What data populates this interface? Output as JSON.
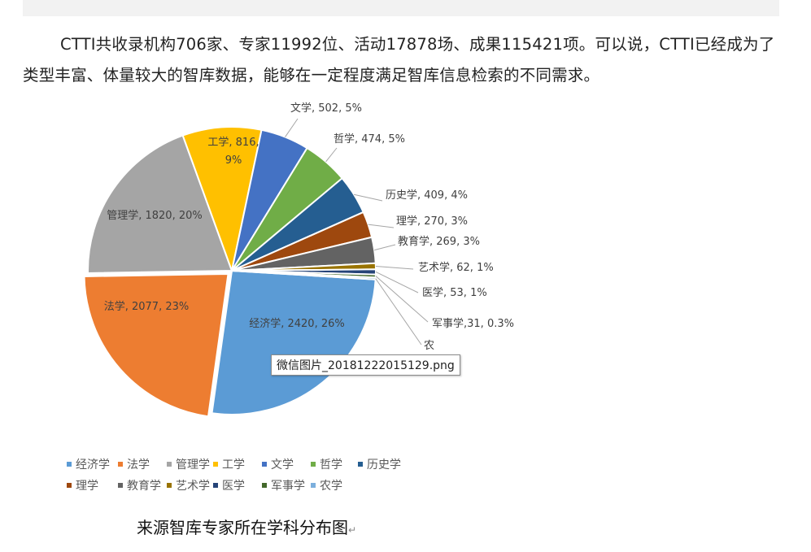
{
  "paragraph": "CTTI共收录机构706家、专家11992位、活动17878场、成果115421项。可以说，CTTI已经成为了类型丰富、体量较大的智库数据，能够在一定程度满足智库信息检索的不同需求。",
  "tooltip": "微信图片_20181222015129.png",
  "caption": "来源智库专家所在学科分布图",
  "caption_mark": "↵",
  "chart_data": {
    "type": "pie",
    "slices": [
      {
        "name": "经济学",
        "value": 2420,
        "pct": "26%",
        "color": "#5b9bd5",
        "label": "经济学, 2420, 26%"
      },
      {
        "name": "法学",
        "value": 2077,
        "pct": "23%",
        "color": "#ed7d31",
        "label": "法学, 2077, 23%"
      },
      {
        "name": "管理学",
        "value": 1820,
        "pct": "20%",
        "color": "#a5a5a5",
        "label": "管理学, 1820, 20%"
      },
      {
        "name": "工学",
        "value": 816,
        "pct": "9%",
        "color": "#ffc000",
        "label": "工学, 816,\n9%"
      },
      {
        "name": "文学",
        "value": 502,
        "pct": "5%",
        "color": "#4472c4",
        "label": "文学, 502, 5%"
      },
      {
        "name": "哲学",
        "value": 474,
        "pct": "5%",
        "color": "#70ad47",
        "label": "哲学, 474, 5%"
      },
      {
        "name": "历史学",
        "value": 409,
        "pct": "4%",
        "color": "#255e91",
        "label": "历史学, 409, 4%"
      },
      {
        "name": "理学",
        "value": 270,
        "pct": "3%",
        "color": "#9e480e",
        "label": "理学, 270, 3%"
      },
      {
        "name": "教育学",
        "value": 269,
        "pct": "3%",
        "color": "#636363",
        "label": "教育学, 269, 3%"
      },
      {
        "name": "艺术学",
        "value": 62,
        "pct": "1%",
        "color": "#997300",
        "label": "艺术学, 62, 1%"
      },
      {
        "name": "医学",
        "value": 53,
        "pct": "1%",
        "color": "#264478",
        "label": "医学, 53, 1%"
      },
      {
        "name": "军事学",
        "value": 31,
        "pct": "0.3%",
        "color": "#43682b",
        "label": "军事学,31, 0.3%"
      },
      {
        "name": "农学",
        "value": 20,
        "pct": "",
        "color": "#7cafdd",
        "label": "农"
      }
    ],
    "legend": [
      "经济学",
      "法学",
      "管理学",
      "工学",
      "文学",
      "哲学",
      "历史学",
      "理学",
      "教育学",
      "艺术学",
      "医学",
      "军事学",
      "农学"
    ]
  }
}
